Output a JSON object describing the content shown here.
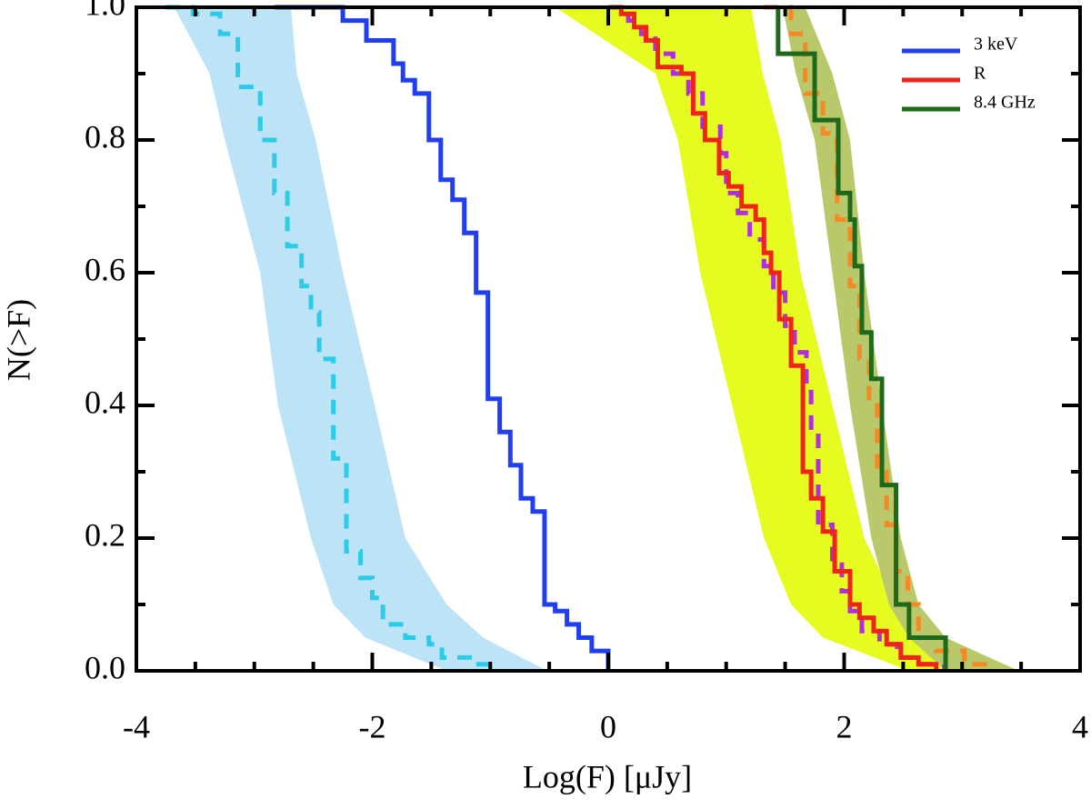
{
  "chart_data": {
    "type": "step",
    "xlabel": "Log(F) [μJy]",
    "ylabel": "N(>F)",
    "xlim": [
      -4,
      4
    ],
    "ylim": [
      0,
      1
    ],
    "xticks": [
      -4,
      -2,
      0,
      2,
      4
    ],
    "xminorticks": [
      -3.5,
      -3,
      -2.5,
      -1.5,
      -1,
      -0.5,
      0.5,
      1,
      1.5,
      2.5,
      3,
      3.5
    ],
    "yticks": [
      {
        "value": 0,
        "label": "0.0"
      },
      0.2,
      0.4,
      0.6,
      0.8,
      {
        "value": 1,
        "label": "1.0"
      }
    ],
    "yminorticks": [
      0.1,
      0.3,
      0.5,
      0.7,
      0.9
    ],
    "legend": "upper right",
    "bands": [
      {
        "color": "#bde3f7",
        "y": [
          1.0,
          0.9,
          0.8,
          0.6,
          0.4,
          0.2,
          0.1,
          0.05,
          0.0
        ],
        "x_left": [
          -3.68,
          -3.38,
          -3.25,
          -2.95,
          -2.8,
          -2.52,
          -2.33,
          -2.06,
          -1.37
        ],
        "x_right": [
          -2.69,
          -2.64,
          -2.48,
          -2.25,
          -1.98,
          -1.72,
          -1.37,
          -1.06,
          -0.52
        ]
      },
      {
        "color": "#e6fb1f",
        "y": [
          1.0,
          0.9,
          0.8,
          0.6,
          0.4,
          0.2,
          0.1,
          0.05,
          0.0
        ],
        "x_left": [
          -0.45,
          0.4,
          0.59,
          0.78,
          1.05,
          1.32,
          1.55,
          1.82,
          2.55
        ],
        "x_right": [
          1.21,
          1.31,
          1.46,
          1.63,
          1.9,
          2.17,
          2.44,
          2.78,
          3.48
        ]
      },
      {
        "color": "#b9c86a",
        "y": [
          1.0,
          0.9,
          0.8,
          0.6,
          0.4,
          0.2,
          0.1,
          0.05,
          0.0
        ],
        "x_left": [
          1.48,
          1.59,
          1.75,
          1.9,
          2.05,
          2.23,
          2.38,
          2.55,
          2.86
        ],
        "x_right": [
          1.67,
          1.9,
          2.05,
          2.17,
          2.32,
          2.48,
          2.63,
          2.86,
          3.48
        ]
      }
    ],
    "series": [
      {
        "color": "#2ccbe8",
        "dashed": true,
        "x": [
          -3.75,
          -3.52,
          -3.29,
          -3.14,
          -2.95,
          -2.83,
          -2.72,
          -2.6,
          -2.52,
          -2.45,
          -2.33,
          -2.22,
          -2.1,
          -2.0,
          -1.91,
          -1.72,
          -1.52,
          -1.41,
          -1.14,
          -0.98
        ],
        "values": [
          1.0,
          0.99,
          0.96,
          0.88,
          0.8,
          0.72,
          0.64,
          0.58,
          0.54,
          0.47,
          0.32,
          0.18,
          0.14,
          0.11,
          0.07,
          0.05,
          0.04,
          0.02,
          0.01,
          0.0
        ]
      },
      {
        "color": "#b030e0",
        "dashed": true,
        "x": [
          0.0,
          0.17,
          0.28,
          0.4,
          0.55,
          0.68,
          0.8,
          0.95,
          1.0,
          1.1,
          1.2,
          1.32,
          1.4,
          1.5,
          1.58,
          1.68,
          1.72,
          1.78,
          1.9,
          1.98,
          2.05,
          2.15,
          2.3,
          2.45,
          2.65,
          2.85
        ],
        "values": [
          1.0,
          0.98,
          0.96,
          0.93,
          0.9,
          0.87,
          0.82,
          0.78,
          0.72,
          0.69,
          0.65,
          0.61,
          0.57,
          0.52,
          0.48,
          0.42,
          0.36,
          0.22,
          0.16,
          0.12,
          0.09,
          0.06,
          0.04,
          0.02,
          0.01,
          0.0
        ]
      },
      {
        "color": "#f58a25",
        "dashed": true,
        "x": [
          1.32,
          1.55,
          1.67,
          1.82,
          1.94,
          2.05,
          2.13,
          2.21,
          2.28,
          2.36,
          2.44,
          2.54,
          2.63,
          2.78,
          3.02,
          3.25
        ],
        "values": [
          1.0,
          0.96,
          0.87,
          0.81,
          0.68,
          0.58,
          0.47,
          0.4,
          0.3,
          0.22,
          0.15,
          0.1,
          0.05,
          0.03,
          0.01,
          0.0
        ]
      },
      {
        "name": "3 keV",
        "color": "#1f3ff0",
        "x": [
          -2.83,
          -2.25,
          -2.05,
          -1.82,
          -1.74,
          -1.64,
          -1.52,
          -1.42,
          -1.32,
          -1.22,
          -1.12,
          -1.02,
          -0.92,
          -0.83,
          -0.74,
          -0.64,
          -0.54,
          -0.45,
          -0.35,
          -0.25,
          -0.14,
          0.0
        ],
        "values": [
          1.0,
          0.98,
          0.95,
          0.915,
          0.89,
          0.87,
          0.8,
          0.74,
          0.71,
          0.66,
          0.57,
          0.41,
          0.36,
          0.31,
          0.26,
          0.24,
          0.1,
          0.09,
          0.07,
          0.05,
          0.03,
          0.0
        ]
      },
      {
        "name": "R",
        "color": "#f0251a",
        "x": [
          0.0,
          0.11,
          0.22,
          0.32,
          0.42,
          0.62,
          0.72,
          0.82,
          0.94,
          1.02,
          1.13,
          1.25,
          1.32,
          1.38,
          1.45,
          1.55,
          1.65,
          1.72,
          1.82,
          1.92,
          2.05,
          2.13,
          2.25,
          2.36,
          2.48,
          2.63,
          2.78
        ],
        "values": [
          1.0,
          0.99,
          0.97,
          0.95,
          0.91,
          0.9,
          0.84,
          0.8,
          0.75,
          0.73,
          0.7,
          0.68,
          0.63,
          0.6,
          0.53,
          0.46,
          0.3,
          0.26,
          0.21,
          0.15,
          0.1,
          0.08,
          0.06,
          0.04,
          0.02,
          0.01,
          0.0
        ]
      },
      {
        "name": "8.4 GHz",
        "color": "#1f6a1a",
        "x": [
          1.44,
          1.44,
          1.75,
          1.95,
          2.05,
          2.09,
          2.15,
          2.23,
          2.32,
          2.44,
          2.55,
          2.86
        ],
        "values": [
          1.0,
          0.93,
          0.83,
          0.72,
          0.68,
          0.61,
          0.51,
          0.44,
          0.28,
          0.1,
          0.05,
          0.0
        ]
      }
    ]
  }
}
